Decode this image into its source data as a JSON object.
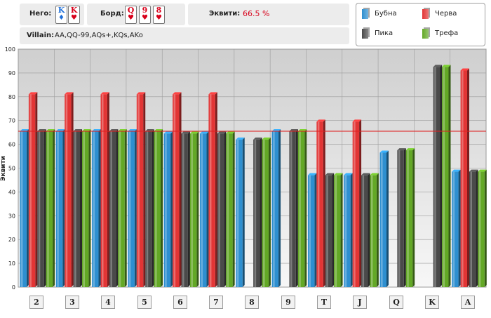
{
  "header": {
    "hero_label": "Него:",
    "hero_cards": [
      {
        "rank": "K",
        "suit": "♦",
        "color": "#1e6fd9"
      },
      {
        "rank": "K",
        "suit": "♥",
        "color": "#d8001a"
      }
    ],
    "board_label": "Борд:",
    "board_cards": [
      {
        "rank": "Q",
        "suit": "♥",
        "color": "#d8001a"
      },
      {
        "rank": "9",
        "suit": "♥",
        "color": "#d8001a"
      },
      {
        "rank": "8",
        "suit": "♥",
        "color": "#d8001a"
      }
    ],
    "equity_label": "Эквити:",
    "equity_value": "66.5 %",
    "villain_label": "Villain:",
    "villain_range": "AA,QQ-99,AQs+,KQs,AKo"
  },
  "legend": [
    {
      "name": "Бубна",
      "color": "#2e8fd0"
    },
    {
      "name": "Черва",
      "color": "#e23535"
    },
    {
      "name": "Пика",
      "color": "#4a4a4a"
    },
    {
      "name": "Трефа",
      "color": "#63a826"
    }
  ],
  "chart_data": {
    "type": "bar",
    "ylabel": "Эквити",
    "ylim": [
      0,
      100
    ],
    "yticks": [
      0,
      10,
      20,
      30,
      40,
      50,
      60,
      70,
      80,
      90,
      100
    ],
    "grid": true,
    "reference_line": 65.5,
    "reference_color": "#e02020",
    "categories": [
      "2",
      "3",
      "4",
      "5",
      "6",
      "7",
      "8",
      "9",
      "T",
      "J",
      "Q",
      "K",
      "A"
    ],
    "series": [
      {
        "name": "Бубна",
        "color": "#2e8fd0",
        "values": [
          65.5,
          65.5,
          65.5,
          65.5,
          64.5,
          64.5,
          62,
          65.5,
          47,
          47,
          56.5,
          null,
          48.5
        ]
      },
      {
        "name": "Черва",
        "color": "#e23535",
        "values": [
          81,
          81,
          81,
          81,
          81,
          81,
          null,
          null,
          69.5,
          69.5,
          null,
          null,
          91
        ]
      },
      {
        "name": "Пика",
        "color": "#4a4a4a",
        "values": [
          65.5,
          65.5,
          65.5,
          65.5,
          64.5,
          64.5,
          62,
          65.5,
          47,
          47,
          57.5,
          92.5,
          48.5
        ]
      },
      {
        "name": "Трефа",
        "color": "#63a826",
        "values": [
          65.5,
          65.5,
          65.5,
          65.5,
          64.5,
          64.5,
          62,
          65.5,
          47,
          47,
          57.5,
          92.5,
          48.5
        ]
      }
    ]
  }
}
